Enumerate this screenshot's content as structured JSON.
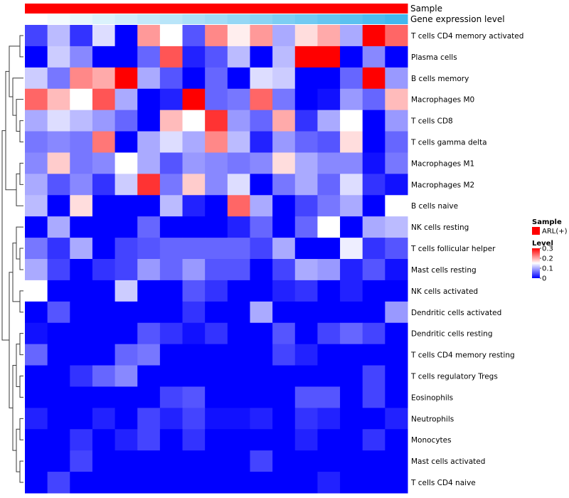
{
  "chart_data": {
    "type": "heatmap",
    "rows": [
      "T cells CD4 memory activated",
      "Plasma cells",
      "B cells memory",
      "Macrophages M0",
      "T cells CD8",
      "T cells gamma delta",
      "Macrophages M1",
      "Macrophages M2",
      "B cells naive",
      "NK cells resting",
      "T cells follicular helper",
      "Mast cells resting",
      "NK cells activated",
      "Dendritic cells activated",
      "Dendritic cells resting",
      "T cells CD4 memory resting",
      "T cells regulatory  Tregs",
      "Eosinophils",
      "Neutrophils",
      "Monocytes",
      "Mast cells activated",
      "T cells CD4 naive"
    ],
    "values": [
      [
        0.04,
        0.11,
        0.03,
        0.13,
        0.0,
        0.21,
        0.15,
        0.05,
        0.22,
        0.16,
        0.21,
        0.1,
        0.17,
        0.2,
        0.1,
        0.31,
        0.24
      ],
      [
        0.0,
        0.12,
        0.08,
        0.0,
        0.0,
        0.06,
        0.25,
        0.02,
        0.05,
        0.11,
        0.0,
        0.11,
        0.3,
        0.31,
        0.0,
        0.08,
        0.0
      ],
      [
        0.12,
        0.07,
        0.22,
        0.2,
        0.31,
        0.1,
        0.05,
        0.0,
        0.06,
        0.0,
        0.13,
        0.12,
        0.0,
        0.0,
        0.06,
        0.31,
        0.09
      ],
      [
        0.24,
        0.19,
        0.15,
        0.25,
        0.1,
        0.0,
        0.02,
        0.31,
        0.06,
        0.07,
        0.24,
        0.07,
        0.0,
        0.01,
        0.09,
        0.06,
        0.19
      ],
      [
        0.1,
        0.13,
        0.11,
        0.09,
        0.06,
        0.0,
        0.19,
        0.15,
        0.27,
        0.09,
        0.06,
        0.2,
        0.03,
        0.1,
        0.15,
        0.0,
        0.09
      ],
      [
        0.07,
        0.08,
        0.07,
        0.23,
        0.0,
        0.1,
        0.13,
        0.1,
        0.22,
        0.11,
        0.02,
        0.09,
        0.06,
        0.05,
        0.17,
        0.0,
        0.06
      ],
      [
        0.08,
        0.18,
        0.07,
        0.08,
        0.15,
        0.1,
        0.05,
        0.09,
        0.08,
        0.07,
        0.08,
        0.17,
        0.1,
        0.08,
        0.08,
        0.01,
        0.07
      ],
      [
        0.1,
        0.05,
        0.08,
        0.03,
        0.12,
        0.27,
        0.07,
        0.18,
        0.08,
        0.13,
        0.0,
        0.07,
        0.1,
        0.06,
        0.13,
        0.03,
        0.01
      ],
      [
        0.11,
        0.0,
        0.17,
        0.0,
        0.0,
        0.0,
        0.11,
        0.02,
        0.0,
        0.24,
        0.1,
        0.0,
        0.04,
        0.07,
        0.1,
        0.0,
        0.15
      ],
      [
        0.0,
        0.1,
        0.0,
        0.0,
        0.0,
        0.06,
        0.0,
        0.0,
        0.0,
        0.02,
        0.06,
        0.0,
        0.06,
        0.15,
        0.0,
        0.1,
        0.11
      ],
      [
        0.07,
        0.03,
        0.1,
        0.0,
        0.04,
        0.05,
        0.06,
        0.06,
        0.06,
        0.06,
        0.04,
        0.1,
        0.0,
        0.0,
        0.14,
        0.03,
        0.05
      ],
      [
        0.1,
        0.04,
        0.0,
        0.03,
        0.04,
        0.09,
        0.06,
        0.09,
        0.05,
        0.05,
        0.0,
        0.04,
        0.1,
        0.09,
        0.02,
        0.05,
        0.01
      ],
      [
        0.15,
        0.0,
        0.0,
        0.0,
        0.12,
        0.0,
        0.0,
        0.05,
        0.03,
        0.0,
        0.0,
        0.02,
        0.03,
        0.0,
        0.02,
        0.0,
        0.0
      ],
      [
        0.0,
        0.05,
        0.0,
        0.0,
        0.0,
        0.0,
        0.0,
        0.03,
        0.0,
        0.0,
        0.1,
        0.0,
        0.0,
        0.0,
        0.0,
        0.0,
        0.09
      ],
      [
        0.01,
        0.0,
        0.0,
        0.0,
        0.0,
        0.05,
        0.03,
        0.01,
        0.03,
        0.0,
        0.0,
        0.05,
        0.0,
        0.04,
        0.06,
        0.04,
        0.0
      ],
      [
        0.06,
        0.0,
        0.0,
        0.0,
        0.06,
        0.07,
        0.0,
        0.0,
        0.0,
        0.0,
        0.0,
        0.04,
        0.02,
        0.0,
        0.0,
        0.0,
        0.0
      ],
      [
        0.0,
        0.0,
        0.03,
        0.06,
        0.08,
        0.0,
        0.0,
        0.0,
        0.0,
        0.0,
        0.0,
        0.0,
        0.0,
        0.0,
        0.0,
        0.04,
        0.0
      ],
      [
        0.0,
        0.0,
        0.0,
        0.0,
        0.0,
        0.0,
        0.04,
        0.05,
        0.0,
        0.0,
        0.0,
        0.0,
        0.05,
        0.05,
        0.0,
        0.04,
        0.0
      ],
      [
        0.02,
        0.0,
        0.0,
        0.02,
        0.0,
        0.04,
        0.02,
        0.04,
        0.01,
        0.01,
        0.02,
        0.0,
        0.03,
        0.02,
        0.0,
        0.0,
        0.02
      ],
      [
        0.0,
        0.0,
        0.03,
        0.0,
        0.02,
        0.04,
        0.0,
        0.03,
        0.0,
        0.0,
        0.0,
        0.0,
        0.02,
        0.0,
        0.0,
        0.03,
        0.0
      ],
      [
        0.0,
        0.0,
        0.04,
        0.0,
        0.0,
        0.0,
        0.0,
        0.0,
        0.0,
        0.0,
        0.04,
        0.0,
        0.0,
        0.0,
        0.0,
        0.0,
        0.0
      ],
      [
        0.0,
        0.04,
        0.0,
        0.0,
        0.0,
        0.0,
        0.0,
        0.0,
        0.0,
        0.0,
        0.0,
        0.0,
        0.0,
        0.02,
        0.0,
        0.0,
        0.0
      ]
    ],
    "scale": {
      "min": 0,
      "max": 0.3,
      "low_color": "#0000ff",
      "mid_color": "#ffffff",
      "high_color": "#ff0000"
    },
    "column_annotations": {
      "sample": {
        "label": "Sample",
        "value": "ARL(+)",
        "color": "#ff0000"
      },
      "gene_expression": {
        "label": "Gene expression level",
        "values": [
          0.0,
          0.06,
          0.12,
          0.19,
          0.25,
          0.31,
          0.37,
          0.44,
          0.5,
          0.56,
          0.62,
          0.69,
          0.75,
          0.81,
          0.87,
          0.94,
          1.0
        ],
        "low_color": "#ffffff",
        "high_color": "#42b8ee"
      }
    },
    "legend": {
      "sample_title": "Sample",
      "sample_item": "ARL(+)",
      "level_title": "Level",
      "level_ticks": [
        "0.3",
        "0.2",
        "0.1",
        "0"
      ],
      "level_tick_values": [
        0.3,
        0.2,
        0.1,
        0
      ],
      "placement": "right"
    },
    "dendrogram": "left",
    "grid": false
  }
}
